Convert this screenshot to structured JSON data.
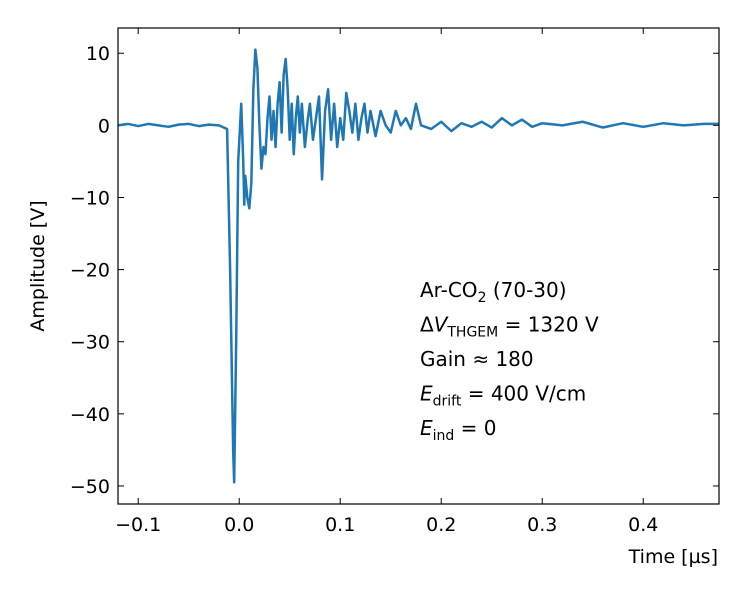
{
  "chart_data": {
    "type": "line",
    "xlabel": "Time [µs]",
    "ylabel": "Amplitude [V]",
    "xlim": [
      -0.12,
      0.475
    ],
    "ylim": [
      -52.5,
      13.5
    ],
    "xticks": [
      {
        "value": -0.1,
        "label": "−0.1"
      },
      {
        "value": 0,
        "label": "0.0"
      },
      {
        "value": 0.1,
        "label": "0.1"
      },
      {
        "value": 0.2,
        "label": "0.2"
      },
      {
        "value": 0.3,
        "label": "0.3"
      },
      {
        "value": 0.4,
        "label": "0.4"
      }
    ],
    "yticks": [
      {
        "value": -50,
        "label": "−50"
      },
      {
        "value": -40,
        "label": "−40"
      },
      {
        "value": -30,
        "label": "−30"
      },
      {
        "value": -20,
        "label": "−20"
      },
      {
        "value": -10,
        "label": "−10"
      },
      0,
      10
    ],
    "grid": false,
    "x": [
      -0.12,
      -0.11,
      -0.1,
      -0.09,
      -0.08,
      -0.07,
      -0.06,
      -0.05,
      -0.04,
      -0.03,
      -0.02,
      -0.012,
      -0.009,
      -0.006,
      -0.005,
      -0.003,
      -0.001,
      0.002,
      0.004,
      0.005,
      0.006,
      0.008,
      0.01,
      0.012,
      0.014,
      0.016,
      0.018,
      0.02,
      0.022,
      0.024,
      0.026,
      0.028,
      0.03,
      0.032,
      0.034,
      0.036,
      0.038,
      0.04,
      0.042,
      0.044,
      0.046,
      0.048,
      0.05,
      0.052,
      0.054,
      0.056,
      0.058,
      0.06,
      0.062,
      0.065,
      0.068,
      0.07,
      0.073,
      0.076,
      0.079,
      0.082,
      0.085,
      0.088,
      0.091,
      0.094,
      0.097,
      0.1,
      0.103,
      0.106,
      0.109,
      0.112,
      0.115,
      0.118,
      0.121,
      0.124,
      0.127,
      0.13,
      0.135,
      0.14,
      0.145,
      0.15,
      0.155,
      0.16,
      0.165,
      0.17,
      0.175,
      0.18,
      0.19,
      0.2,
      0.21,
      0.22,
      0.23,
      0.24,
      0.25,
      0.26,
      0.27,
      0.28,
      0.29,
      0.3,
      0.32,
      0.34,
      0.36,
      0.38,
      0.4,
      0.42,
      0.44,
      0.46,
      0.475
    ],
    "series": [
      {
        "color": "#1f77b4",
        "values": [
          0,
          0.2,
          -0.1,
          0.2,
          0,
          -0.2,
          0.1,
          0.2,
          -0.1,
          0.1,
          0,
          -0.5,
          -20,
          -45,
          -49.5,
          -30,
          -5,
          3,
          -5,
          -11,
          -7,
          -10,
          -11.5,
          -8,
          5,
          10.5,
          8,
          0,
          -6,
          -3,
          -4,
          1,
          4,
          -2,
          2,
          -3,
          3,
          6,
          -1,
          7,
          9.2,
          5,
          -2,
          3,
          -4,
          1,
          4,
          -1,
          3,
          -3,
          1,
          3,
          -2,
          1,
          4,
          -7.5,
          2,
          5,
          -2,
          3,
          -3,
          1,
          -2,
          4.5,
          2,
          -1,
          3,
          -2,
          1,
          3,
          -1,
          2,
          -1.5,
          2,
          0,
          -1,
          2,
          0,
          1,
          -0.5,
          3,
          0,
          -0.5,
          0.5,
          -0.8,
          0.3,
          -0.2,
          0.5,
          -0.3,
          1,
          0,
          0.8,
          -0.2,
          0.3,
          0,
          0.5,
          -0.3,
          0.3,
          -0.2,
          0.3,
          0,
          0.2,
          0.2
        ]
      }
    ],
    "annotations": [
      [
        {
          "text": "Ar-CO"
        },
        {
          "text": "2",
          "style": "sub"
        },
        {
          "text": " (70-30)"
        }
      ],
      [
        {
          "text": "Δ"
        },
        {
          "text": "V",
          "style": "italic"
        },
        {
          "text": "THGEM",
          "style": "sub"
        },
        {
          "text": " = 1320 V"
        }
      ],
      [
        {
          "text": "Gain ≈ 180"
        }
      ],
      [
        {
          "text": "E",
          "style": "italic"
        },
        {
          "text": "drift",
          "style": "sub"
        },
        {
          "text": " = 400 V/cm"
        }
      ],
      [
        {
          "text": "E",
          "style": "italic"
        },
        {
          "text": "ind",
          "style": "sub"
        },
        {
          "text": " = 0"
        }
      ]
    ]
  }
}
